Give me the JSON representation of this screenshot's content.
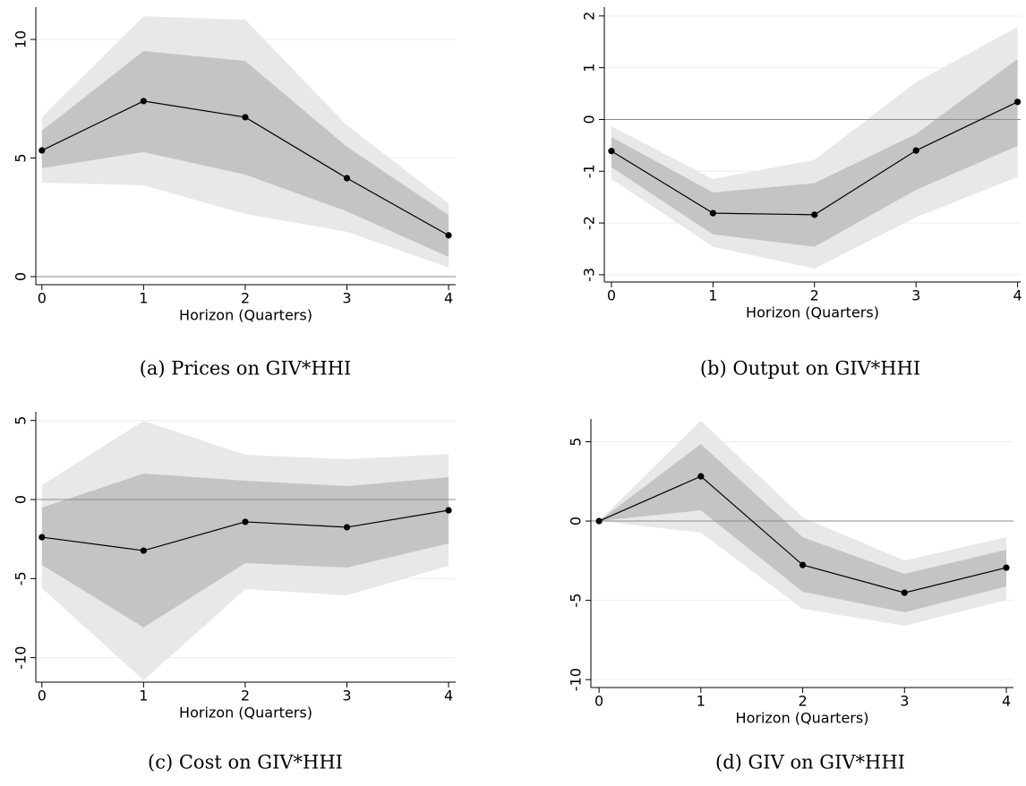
{
  "chart_data": [
    {
      "type": "line",
      "caption": "(a) Prices on GIV*HHI",
      "xlabel": "Horizon (Quarters)",
      "x": [
        0,
        1,
        2,
        3,
        4
      ],
      "xlim": [
        -0.06,
        4.07
      ],
      "xticks": [
        0,
        1,
        2,
        3,
        4
      ],
      "ylim": [
        -0.34,
        11.36
      ],
      "yticks": [
        0,
        5,
        10
      ],
      "grid": true,
      "hline": 0,
      "bands": [
        {
          "color": "#e8e8e8",
          "lower": [
            3.96,
            3.85,
            2.64,
            1.89,
            0.38
          ],
          "upper": [
            6.72,
            10.98,
            10.83,
            6.38,
            3.09
          ]
        },
        {
          "color": "#c4c4c4",
          "lower": [
            4.57,
            5.25,
            4.3,
            2.75,
            0.83
          ],
          "upper": [
            6.15,
            9.51,
            9.09,
            5.47,
            2.6
          ]
        }
      ],
      "series": [
        {
          "color": "#000000",
          "values": [
            5.32,
            7.4,
            6.72,
            4.15,
            1.74
          ]
        }
      ]
    },
    {
      "type": "line",
      "caption": "(b) Output on GIV*HHI",
      "xlabel": "Horizon (Quarters)",
      "x": [
        0,
        1,
        2,
        3,
        4
      ],
      "xlim": [
        -0.07,
        4.03
      ],
      "xticks": [
        0,
        1,
        2,
        3,
        4
      ],
      "ylim": [
        -3.14,
        2.17
      ],
      "yticks": [
        -3,
        -2,
        -1,
        0,
        1,
        2
      ],
      "grid": true,
      "hline": 0,
      "bands": [
        {
          "color": "#e8e8e8",
          "lower": [
            -1.15,
            -2.46,
            -2.88,
            -1.89,
            -1.11
          ],
          "upper": [
            -0.13,
            -1.15,
            -0.78,
            0.72,
            1.79
          ]
        },
        {
          "color": "#c4c4c4",
          "lower": [
            -0.92,
            -2.22,
            -2.46,
            -1.36,
            -0.51
          ],
          "upper": [
            -0.34,
            -1.41,
            -1.23,
            -0.28,
            1.17
          ]
        }
      ],
      "series": [
        {
          "color": "#000000",
          "values": [
            -0.61,
            -1.81,
            -1.84,
            -0.6,
            0.34
          ]
        }
      ]
    },
    {
      "type": "line",
      "caption": "(c) Cost on GIV*HHI",
      "xlabel": "Horizon (Quarters)",
      "x": [
        0,
        1,
        2,
        3,
        4
      ],
      "xlim": [
        -0.06,
        4.07
      ],
      "xticks": [
        0,
        1,
        2,
        3,
        4
      ],
      "ylim": [
        -11.55,
        5.55
      ],
      "yticks": [
        -10,
        -5,
        0,
        5
      ],
      "grid": true,
      "hline": 0,
      "bands": [
        {
          "color": "#e8e8e8",
          "lower": [
            -5.6,
            -11.43,
            -5.66,
            -6.06,
            -4.19
          ],
          "upper": [
            0.91,
            4.98,
            2.83,
            2.55,
            2.89
          ]
        },
        {
          "color": "#c4c4c4",
          "lower": [
            -4.13,
            -8.09,
            -4.02,
            -4.3,
            -2.77
          ],
          "upper": [
            -0.51,
            1.64,
            1.19,
            0.85,
            1.41
          ]
        }
      ],
      "series": [
        {
          "color": "#000000",
          "values": [
            -2.38,
            -3.23,
            -1.41,
            -1.75,
            -0.68
          ]
        }
      ]
    },
    {
      "type": "line",
      "caption": "(d) GIV on GIV*HHI",
      "xlabel": "Horizon (Quarters)",
      "x": [
        0,
        1,
        2,
        3,
        4
      ],
      "xlim": [
        -0.08,
        4.07
      ],
      "xticks": [
        0,
        1,
        2,
        3,
        4
      ],
      "ylim": [
        -10.5,
        6.44
      ],
      "yticks": [
        -10,
        -5,
        0,
        5
      ],
      "grid": true,
      "hline": 0,
      "bands": [
        {
          "color": "#e8e8e8",
          "lower": [
            0,
            -0.73,
            -5.54,
            -6.61,
            -4.97
          ],
          "upper": [
            0,
            6.33,
            0.23,
            -2.49,
            -1.02
          ]
        },
        {
          "color": "#c4c4c4",
          "lower": [
            0,
            0.68,
            -4.46,
            -5.76,
            -4.12
          ],
          "upper": [
            0,
            4.86,
            -1.02,
            -3.33,
            -1.81
          ]
        }
      ],
      "series": [
        {
          "color": "#000000",
          "values": [
            0,
            2.82,
            -2.77,
            -4.52,
            -2.94
          ]
        }
      ]
    }
  ]
}
